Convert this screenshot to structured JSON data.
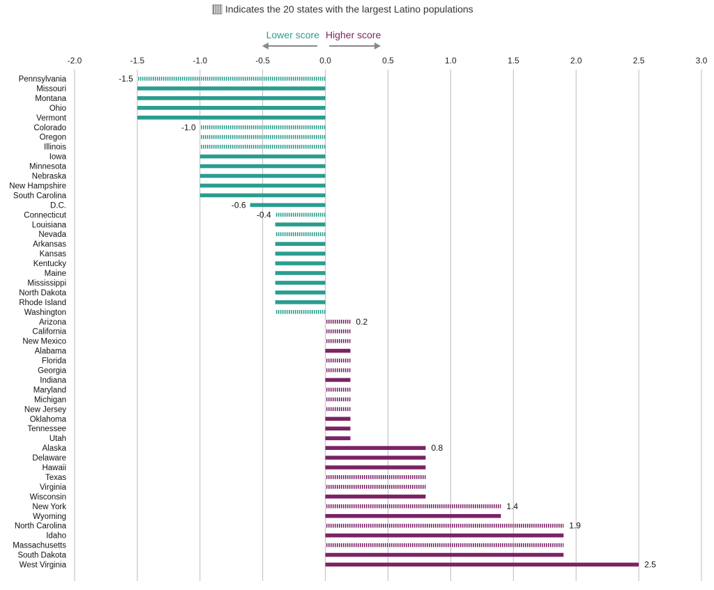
{
  "chart_data": {
    "type": "bar",
    "orientation": "horizontal",
    "title": "Indicates the 20 states with the largest Latino populations",
    "legend": {
      "pattern_meaning": "Indicates the 20 states with the largest Latino populations",
      "lower_label": "Lower score",
      "higher_label": "Higher score"
    },
    "xlim": [
      -2.0,
      3.0
    ],
    "xticks": [
      "-2.0",
      "-1.5",
      "-1.0",
      "-0.5",
      "0.0",
      "0.5",
      "1.0",
      "1.5",
      "2.0",
      "2.5",
      "3.0"
    ],
    "grid": true,
    "colors": {
      "negative": "#2a9d8f",
      "positive": "#7b2365",
      "grid": "#bbbbbb",
      "arrow": "#888888"
    },
    "categories": [
      "Pennsylvania",
      "Missouri",
      "Montana",
      "Ohio",
      "Vermont",
      "Colorado",
      "Oregon",
      "Illinois",
      "Iowa",
      "Minnesota",
      "Nebraska",
      "New Hampshire",
      "South Carolina",
      "D.C.",
      "Connecticut",
      "Louisiana",
      "Nevada",
      "Arkansas",
      "Kansas",
      "Kentucky",
      "Maine",
      "Mississippi",
      "North Dakota",
      "Rhode Island",
      "Washington",
      "Arizona",
      "California",
      "New Mexico",
      "Alabama",
      "Florida",
      "Georgia",
      "Indiana",
      "Maryland",
      "Michigan",
      "New Jersey",
      "Oklahoma",
      "Tennessee",
      "Utah",
      "Alaska",
      "Delaware",
      "Hawaii",
      "Texas",
      "Virginia",
      "Wisconsin",
      "New York",
      "Wyoming",
      "North Carolina",
      "Idaho",
      "Massachusetts",
      "South Dakota",
      "West Virginia"
    ],
    "values": [
      -1.5,
      -1.5,
      -1.5,
      -1.5,
      -1.5,
      -1.0,
      -1.0,
      -1.0,
      -1.0,
      -1.0,
      -1.0,
      -1.0,
      -1.0,
      -0.6,
      -0.4,
      -0.4,
      -0.4,
      -0.4,
      -0.4,
      -0.4,
      -0.4,
      -0.4,
      -0.4,
      -0.4,
      -0.4,
      0.2,
      0.2,
      0.2,
      0.2,
      0.2,
      0.2,
      0.2,
      0.2,
      0.2,
      0.2,
      0.2,
      0.2,
      0.2,
      0.8,
      0.8,
      0.8,
      0.8,
      0.8,
      0.8,
      1.4,
      1.4,
      1.9,
      1.9,
      1.9,
      1.9,
      2.5
    ],
    "largest_latino_population": [
      true,
      false,
      false,
      false,
      false,
      true,
      true,
      true,
      false,
      false,
      false,
      false,
      false,
      false,
      true,
      false,
      true,
      false,
      false,
      false,
      false,
      false,
      false,
      false,
      true,
      true,
      true,
      true,
      false,
      true,
      true,
      false,
      true,
      true,
      true,
      false,
      false,
      false,
      false,
      false,
      false,
      true,
      true,
      false,
      true,
      false,
      true,
      false,
      true,
      false,
      false
    ],
    "data_labels": [
      {
        "category": "Pennsylvania",
        "text": "-1.5"
      },
      {
        "category": "Colorado",
        "text": "-1.0"
      },
      {
        "category": "D.C.",
        "text": "-0.6"
      },
      {
        "category": "Connecticut",
        "text": "-0.4"
      },
      {
        "category": "Arizona",
        "text": "0.2"
      },
      {
        "category": "Alaska",
        "text": "0.8"
      },
      {
        "category": "New York",
        "text": "1.4"
      },
      {
        "category": "North Carolina",
        "text": "1.9"
      },
      {
        "category": "West Virginia",
        "text": "2.5"
      }
    ]
  }
}
